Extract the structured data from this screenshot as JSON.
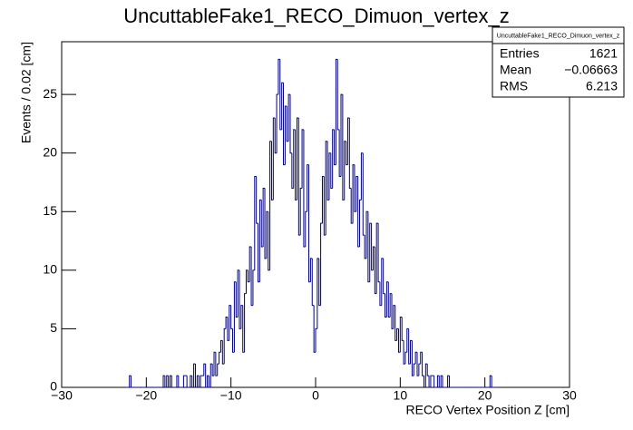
{
  "chart_data": {
    "type": "histogram",
    "title": "UncuttableFake1_RECO_Dimuon_vertex_z",
    "x_label": "RECO Vertex Position Z [cm]",
    "y_label": "Events / 0.02 [cm]",
    "color": "#000080",
    "stats": {
      "name": "UncuttableFake1_RECO_Dimuon_vertex_z",
      "rows": [
        [
          "Entries",
          "1621"
        ],
        [
          "Mean",
          "−0.06663"
        ],
        [
          "RMS",
          "6.213"
        ]
      ]
    },
    "xlim": [
      -30,
      30
    ],
    "xticks": [
      {
        "value": -30,
        "label": "−30"
      },
      {
        "value": -20,
        "label": "−20"
      },
      {
        "value": -10,
        "label": "−10"
      },
      0,
      10,
      20,
      30
    ],
    "ylim": [
      0,
      29.5
    ],
    "yticks": [
      0,
      5,
      10,
      15,
      20,
      25
    ],
    "bins": [
      -22.4,
      -22.2,
      -22,
      -21.8,
      -21.6,
      -21.4,
      -21.2,
      -21,
      -20.8,
      -20.6,
      -20.4,
      -20.2,
      -20,
      -19.8,
      -19.6,
      -19.4,
      -19.2,
      -19,
      -18.8,
      -18.6,
      -18.4,
      -18.2,
      -18,
      -17.8,
      -17.6,
      -17.4,
      -17.2,
      -17,
      -16.8,
      -16.6,
      -16.4,
      -16.2,
      -16,
      -15.8,
      -15.6,
      -15.4,
      -15.2,
      -15,
      -14.8,
      -14.6,
      -14.4,
      -14.2,
      -14,
      -13.8,
      -13.6,
      -13.4,
      -13.2,
      -13,
      -12.8,
      -12.6,
      -12.4,
      -12.2,
      -12,
      -11.8,
      -11.6,
      -11.4,
      -11.2,
      -11,
      -10.8,
      -10.6,
      -10.4,
      -10.2,
      -10,
      -9.8,
      -9.6,
      -9.4,
      -9.2,
      -9,
      -8.8,
      -8.6,
      -8.4,
      -8.2,
      -8,
      -7.8,
      -7.6,
      -7.4,
      -7.2,
      -7,
      -6.8,
      -6.6,
      -6.4,
      -6.2,
      -6,
      -5.8,
      -5.6,
      -5.4,
      -5.2,
      -5,
      -4.8,
      -4.6,
      -4.4,
      -4.2,
      -4,
      -3.8,
      -3.6,
      -3.4,
      -3.2,
      -3,
      -2.8,
      -2.6,
      -2.4,
      -2.2,
      -2,
      -1.8,
      -1.6,
      -1.4,
      -1.2,
      -1,
      -0.8,
      -0.6,
      -0.4,
      -0.2,
      0,
      0.2,
      0.4,
      0.6,
      0.8,
      1,
      1.2,
      1.4,
      1.6,
      1.8,
      2,
      2.2,
      2.4,
      2.6,
      2.8,
      3,
      3.2,
      3.4,
      3.6,
      3.8,
      4,
      4.2,
      4.4,
      4.6,
      4.8,
      5,
      5.2,
      5.4,
      5.6,
      5.8,
      6,
      6.2,
      6.4,
      6.6,
      6.8,
      7,
      7.2,
      7.4,
      7.6,
      7.8,
      8,
      8.2,
      8.4,
      8.6,
      8.8,
      9,
      9.2,
      9.4,
      9.6,
      9.8,
      10,
      10.2,
      10.4,
      10.6,
      10.8,
      11,
      11.2,
      11.4,
      11.6,
      11.8,
      12,
      12.2,
      12.4,
      12.6,
      12.8,
      13,
      13.2,
      13.4,
      13.6,
      13.8,
      14,
      14.2,
      14.4,
      14.6,
      14.8,
      15,
      15.2,
      15.4,
      15.6,
      15.8,
      16,
      16.2,
      16.4,
      16.6,
      16.8,
      17,
      17.2,
      17.4,
      17.6,
      17.8,
      18,
      18.2,
      18.4,
      18.6,
      18.8,
      19,
      19.2,
      19.4,
      19.6,
      19.8,
      20,
      20.2,
      20.4,
      20.6,
      20.8,
      21,
      21.2,
      21.4,
      21.6
    ],
    "values": [
      0,
      0,
      1,
      0,
      0,
      0,
      0,
      0,
      0,
      0,
      0,
      0,
      0,
      0,
      0,
      0,
      0,
      0,
      0,
      0,
      0,
      0,
      1,
      0,
      1,
      0,
      1,
      0,
      0,
      0,
      1,
      0,
      0,
      0,
      1,
      1,
      0,
      0,
      1,
      0,
      2,
      0,
      1,
      0,
      1,
      1,
      2,
      0,
      1,
      0,
      2,
      1,
      3,
      1,
      2,
      3,
      4,
      2,
      5,
      6,
      4,
      7,
      5,
      3,
      9,
      6,
      10,
      5,
      7,
      3,
      8,
      10,
      9,
      12,
      7,
      10,
      18,
      14,
      9,
      16,
      12,
      17,
      11,
      15,
      10,
      21,
      16,
      23,
      20,
      25,
      28,
      22,
      26,
      19,
      24,
      21,
      25,
      20,
      17,
      22,
      16,
      23,
      13,
      17,
      22,
      12,
      15,
      19,
      9,
      11,
      7,
      3,
      5,
      11,
      7,
      14,
      18,
      13,
      21,
      16,
      20,
      17,
      22,
      19,
      28,
      22,
      18,
      25,
      16,
      21,
      19,
      23,
      17,
      14,
      19,
      15,
      18,
      12,
      16,
      20,
      13,
      11,
      15,
      9,
      14,
      10,
      12,
      8,
      14,
      9,
      7,
      11,
      8,
      6,
      9,
      6,
      8,
      5,
      7,
      4,
      5,
      3,
      6,
      4,
      2,
      3,
      5,
      2,
      4,
      1,
      2,
      3,
      1,
      2,
      3,
      1,
      0,
      2,
      1,
      0,
      1,
      1,
      0,
      0,
      1,
      0,
      1,
      0,
      0,
      0,
      1,
      0,
      0,
      0,
      0,
      0,
      0,
      0,
      0,
      0,
      0,
      0,
      0,
      0,
      0,
      0,
      0,
      0,
      0,
      0,
      0,
      0,
      0,
      0,
      0,
      1,
      0,
      0,
      0,
      0
    ]
  }
}
